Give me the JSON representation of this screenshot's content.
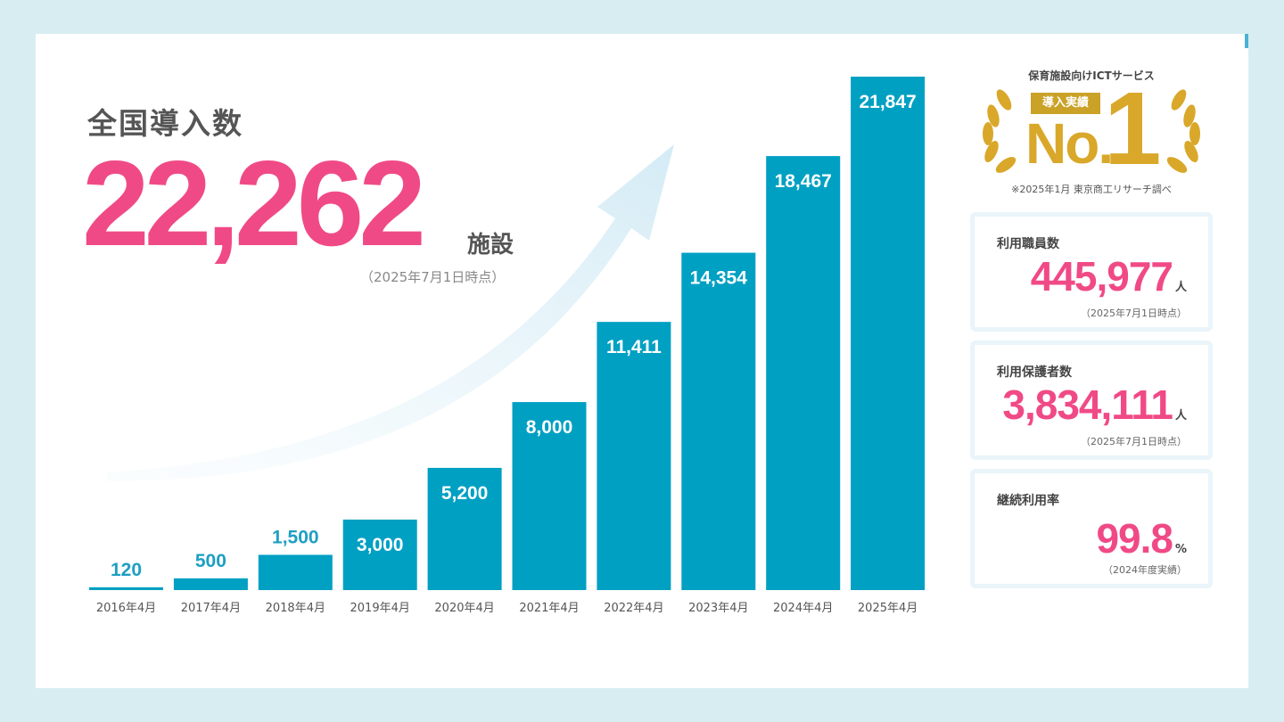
{
  "headline": {
    "title": "全国導入数",
    "value": "22,262",
    "unit": "施設",
    "note": "（2025年7月1日時点）"
  },
  "badge": {
    "service": "保育施設向けICTサービス",
    "tag": "導入実績",
    "no": "No.",
    "one": "1",
    "note": "※2025年1月 東京商工リサーチ調べ"
  },
  "stats": [
    {
      "label": "利用職員数",
      "value": "445,977",
      "unit": "人",
      "note": "（2025年7月1日時点）"
    },
    {
      "label": "利用保護者数",
      "value": "3,834,111",
      "unit": "人",
      "note": "（2025年7月1日時点）"
    },
    {
      "label": "継続利用率",
      "value": "99.8",
      "unit": "%",
      "note": "（2024年度実績）"
    }
  ],
  "colors": {
    "bar": "#00a0c3",
    "accent_pink": "#f04a86",
    "gold": "#d9a82a",
    "background": "#d8edf1"
  },
  "chart_data": {
    "type": "bar",
    "categories": [
      "2016年4月",
      "2017年4月",
      "2018年4月",
      "2019年4月",
      "2020年4月",
      "2021年4月",
      "2022年4月",
      "2023年4月",
      "2024年4月",
      "2025年4月"
    ],
    "values": [
      120,
      500,
      1500,
      3000,
      5200,
      8000,
      11411,
      14354,
      18467,
      21847
    ],
    "value_labels": [
      "120",
      "500",
      "1,500",
      "3,000",
      "5,200",
      "8,000",
      "11,411",
      "14,354",
      "18,467",
      "21,847"
    ],
    "title": "",
    "xlabel": "",
    "ylabel": "",
    "ylim": [
      0,
      21847
    ],
    "grid": false,
    "legend": "none"
  }
}
